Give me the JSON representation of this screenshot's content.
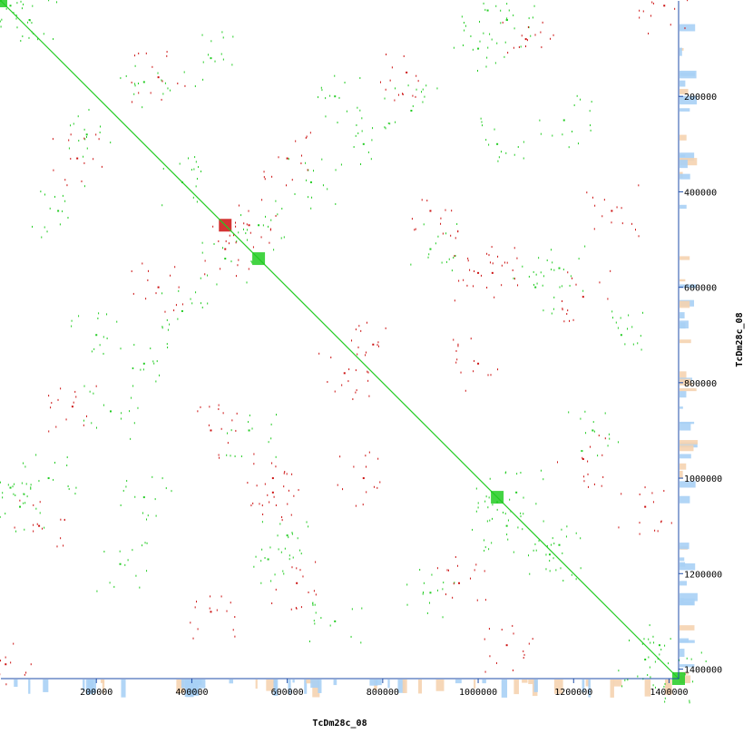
{
  "chart_data": {
    "type": "scatter",
    "title": "",
    "xlabel": "TcDm28c_08",
    "ylabel": "TcDm28c_08",
    "xlim": [
      0,
      1420000
    ],
    "ylim": [
      0,
      1420000
    ],
    "x_ticks": [
      200000,
      400000,
      600000,
      800000,
      1000000,
      1200000,
      1400000
    ],
    "y_ticks": [
      200000,
      400000,
      600000,
      800000,
      1000000,
      1200000,
      1400000
    ],
    "x_tick_labels": [
      "200000",
      "400000",
      "600000",
      "800000",
      "1000000",
      "1200000",
      "1400000"
    ],
    "y_tick_labels": [
      "200000",
      "400000",
      "600000",
      "800000",
      "1000000",
      "1200000",
      "1400000"
    ],
    "grid": false,
    "colors": {
      "forward": "#22cc22",
      "reverse": "#cc1111",
      "coverage": "#a8d0f5",
      "coverage_alt": "#f5d3b0",
      "axis": "#1f4ea8"
    },
    "series": [
      {
        "key": "forward",
        "points": [
          [
            0,
            0
          ],
          [
            1420000,
            1420000
          ],
          [
            20000,
            10000
          ],
          [
            60000,
            40000
          ],
          [
            180000,
            280000
          ],
          [
            300000,
            170000
          ],
          [
            540000,
            470000
          ],
          [
            470000,
            540000
          ],
          [
            380000,
            380000
          ],
          [
            1040000,
            1050000
          ],
          [
            1080000,
            1030000
          ],
          [
            1060000,
            1100000
          ],
          [
            1150000,
            1160000
          ],
          [
            1170000,
            1140000
          ],
          [
            20000,
            1020000
          ],
          [
            40000,
            1060000
          ],
          [
            1020000,
            20000
          ],
          [
            1060000,
            40000
          ],
          [
            300000,
            1040000
          ],
          [
            1040000,
            300000
          ],
          [
            1350000,
            1380000
          ],
          [
            1380000,
            1350000
          ],
          [
            560000,
            1170000
          ],
          [
            1170000,
            560000
          ],
          [
            440000,
            120000
          ],
          [
            120000,
            440000
          ],
          [
            650000,
            380000
          ],
          [
            380000,
            650000
          ],
          [
            900000,
            520000
          ],
          [
            520000,
            900000
          ],
          [
            1240000,
            900000
          ],
          [
            900000,
            1240000
          ],
          [
            760000,
            300000
          ],
          [
            300000,
            760000
          ],
          [
            1120000,
            600000
          ],
          [
            600000,
            1120000
          ],
          [
            230000,
            860000
          ],
          [
            860000,
            230000
          ],
          [
            1000000,
            100000
          ],
          [
            100000,
            1000000
          ],
          [
            1180000,
            250000
          ],
          [
            250000,
            1180000
          ],
          [
            700000,
            200000
          ],
          [
            200000,
            700000
          ],
          [
            1300000,
            700000
          ],
          [
            700000,
            1300000
          ]
        ]
      },
      {
        "key": "reverse",
        "points": [
          [
            1390000,
            10000
          ],
          [
            10000,
            1390000
          ],
          [
            470000,
            520000
          ],
          [
            520000,
            470000
          ],
          [
            570000,
            1030000
          ],
          [
            1030000,
            570000
          ],
          [
            1000000,
            570000
          ],
          [
            570000,
            1000000
          ],
          [
            1060000,
            1350000
          ],
          [
            1350000,
            1060000
          ],
          [
            1100000,
            80000
          ],
          [
            80000,
            1100000
          ],
          [
            760000,
            1000000
          ],
          [
            1000000,
            760000
          ],
          [
            440000,
            900000
          ],
          [
            900000,
            440000
          ],
          [
            1220000,
            620000
          ],
          [
            620000,
            1220000
          ],
          [
            330000,
            600000
          ],
          [
            600000,
            330000
          ],
          [
            850000,
            150000
          ],
          [
            150000,
            850000
          ],
          [
            1280000,
            440000
          ],
          [
            440000,
            1280000
          ],
          [
            720000,
            780000
          ],
          [
            780000,
            720000
          ],
          [
            960000,
            1220000
          ],
          [
            1220000,
            960000
          ],
          [
            160000,
            330000
          ],
          [
            330000,
            160000
          ]
        ]
      }
    ]
  }
}
